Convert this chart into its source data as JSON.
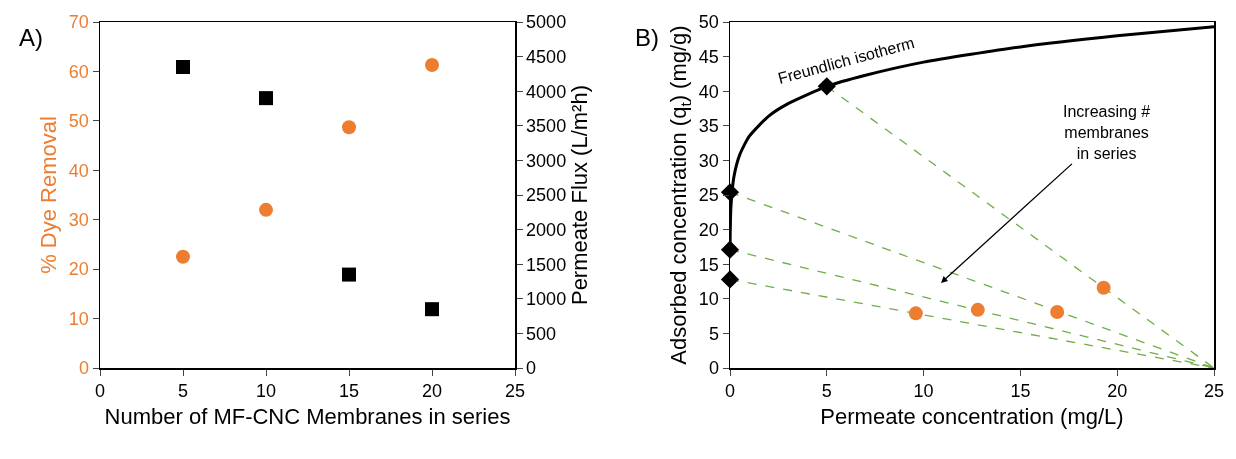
{
  "chart_data": [
    {
      "type": "scatter",
      "xlabel": "Number of MF-CNC Membranes in series",
      "ylabel": "% Dye Removal",
      "y2label": "Permeate Flux (L/m²h)",
      "annotations": [
        "A)"
      ],
      "xlim": [
        0,
        25
      ],
      "xticks": [
        0,
        5,
        10,
        15,
        20,
        25
      ],
      "ylim": [
        0,
        70
      ],
      "yticks": [
        0,
        10,
        20,
        30,
        40,
        50,
        60,
        70
      ],
      "y2lim": [
        0,
        5000
      ],
      "y2ticks": [
        0,
        500,
        1000,
        1500,
        2000,
        2500,
        3000,
        3500,
        4000,
        4500,
        5000
      ],
      "grid": false,
      "series": [
        {
          "x": [
            5,
            10,
            15,
            20
          ],
          "values": [
            22.5,
            32,
            48.7,
            61.3
          ],
          "color": "#ed7d31",
          "marker": "circle"
        },
        {
          "x": [
            5,
            10,
            15,
            20
          ],
          "values": [
            4350,
            3900,
            1350,
            850
          ],
          "color": "#000000",
          "marker": "square",
          "axis": "y2"
        }
      ]
    },
    {
      "type": "line",
      "xlabel": "Permeate concentration (mg/L)",
      "ylabel": "Adsorbed concentration (q$_{t}$) (mg/g)",
      "annotations": [
        "B)",
        "Freundlich isotherm",
        "Increasing #\nmembranes\nin series"
      ],
      "xlim": [
        0,
        25
      ],
      "xticks": [
        0,
        5,
        10,
        15,
        20,
        25
      ],
      "ylim": [
        0,
        50
      ],
      "yticks": [
        0,
        5,
        10,
        15,
        20,
        25,
        30,
        35,
        40,
        45,
        50
      ],
      "grid": false,
      "series": [
        {
          "x": [
            0.003,
            0.01,
            0.05,
            0.2,
            0.5,
            1,
            2,
            3,
            5,
            7,
            10,
            15,
            20,
            25
          ],
          "values": [
            16.7,
            19.3,
            23.4,
            27.6,
            30.8,
            33.5,
            36.4,
            38.2,
            40.7,
            42.3,
            44.2,
            46.4,
            48,
            49.3
          ],
          "color": "#000000",
          "marker": "none",
          "line_style": "solid"
        },
        {
          "x": [
            5,
            25
          ],
          "values": [
            40.7,
            0
          ],
          "color": "#70ad47",
          "marker": "none",
          "line_style": "dashed"
        },
        {
          "x": [
            0,
            25
          ],
          "values": [
            25.4,
            0
          ],
          "color": "#70ad47",
          "marker": "none",
          "line_style": "dashed"
        },
        {
          "x": [
            0,
            25
          ],
          "values": [
            17.1,
            0
          ],
          "color": "#70ad47",
          "marker": "none",
          "line_style": "dashed"
        },
        {
          "x": [
            0,
            25
          ],
          "values": [
            12.8,
            0
          ],
          "color": "#70ad47",
          "marker": "none",
          "line_style": "dashed"
        },
        {
          "type": "scatter",
          "x": [
            0,
            0,
            0,
            5
          ],
          "values": [
            12.8,
            17.1,
            25.4,
            40.7
          ],
          "color": "#000000",
          "marker": "diamond"
        },
        {
          "type": "scatter",
          "x": [
            9.6,
            12.8,
            16.9,
            19.3
          ],
          "values": [
            7.9,
            8.4,
            8.1,
            11.6
          ],
          "color": "#ed7d31",
          "marker": "circle"
        }
      ]
    }
  ]
}
